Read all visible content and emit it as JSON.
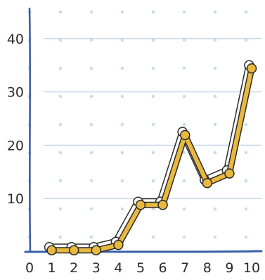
{
  "chart_data": {
    "type": "line",
    "title": "",
    "xlabel": "",
    "ylabel": "",
    "x": [
      1,
      2,
      3,
      4,
      5,
      6,
      7,
      8,
      9,
      10
    ],
    "series": [
      {
        "values": [
          0.3,
          0.3,
          0.3,
          1.3,
          8.8,
          8.8,
          21.9,
          12.9,
          14.7,
          34.4
        ],
        "color": "#e8b83f"
      }
    ],
    "xlim": [
      0,
      10
    ],
    "ylim": [
      0,
      45
    ],
    "x_ticks": [
      "0",
      "1",
      "2",
      "3",
      "4",
      "5",
      "6",
      "7",
      "8",
      "9",
      "10"
    ],
    "y_ticks": [
      "10",
      "20",
      "30",
      "40"
    ],
    "grid": true,
    "legend": "none",
    "colors": {
      "axis": "#3a5fa8",
      "gridline": "#c6d3ea",
      "dot_grid": "#c9dde6",
      "line_fill": "#e8b83f",
      "line_outline": "#2a2a2a",
      "shadow": "#ffffff"
    }
  }
}
